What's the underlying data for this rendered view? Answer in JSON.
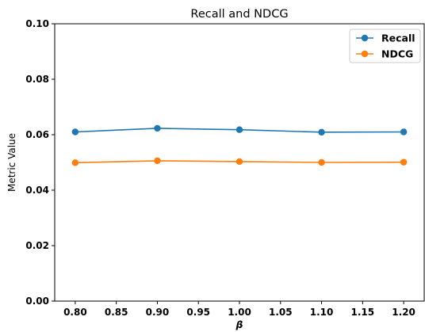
{
  "chart_data": {
    "type": "line",
    "title": "Recall and NDCG",
    "xlabel": "β",
    "ylabel": "Metric Value",
    "x": [
      0.8,
      0.9,
      1.0,
      1.1,
      1.2
    ],
    "xlim": [
      0.775,
      1.225
    ],
    "ylim": [
      0.0,
      0.1
    ],
    "xticks": [
      "0.80",
      "0.85",
      "0.90",
      "0.95",
      "1.00",
      "1.05",
      "1.10",
      "1.15",
      "1.20"
    ],
    "yticks": [
      "0.00",
      "0.02",
      "0.04",
      "0.06",
      "0.08",
      "0.10"
    ],
    "grid": false,
    "legend_position": "top-right",
    "series": [
      {
        "name": "Recall",
        "color": "#1f77b4",
        "values": [
          0.061,
          0.0623,
          0.0618,
          0.0609,
          0.061
        ]
      },
      {
        "name": "NDCG",
        "color": "#ff7f0e",
        "values": [
          0.0499,
          0.0506,
          0.0503,
          0.05,
          0.0501
        ]
      }
    ]
  }
}
